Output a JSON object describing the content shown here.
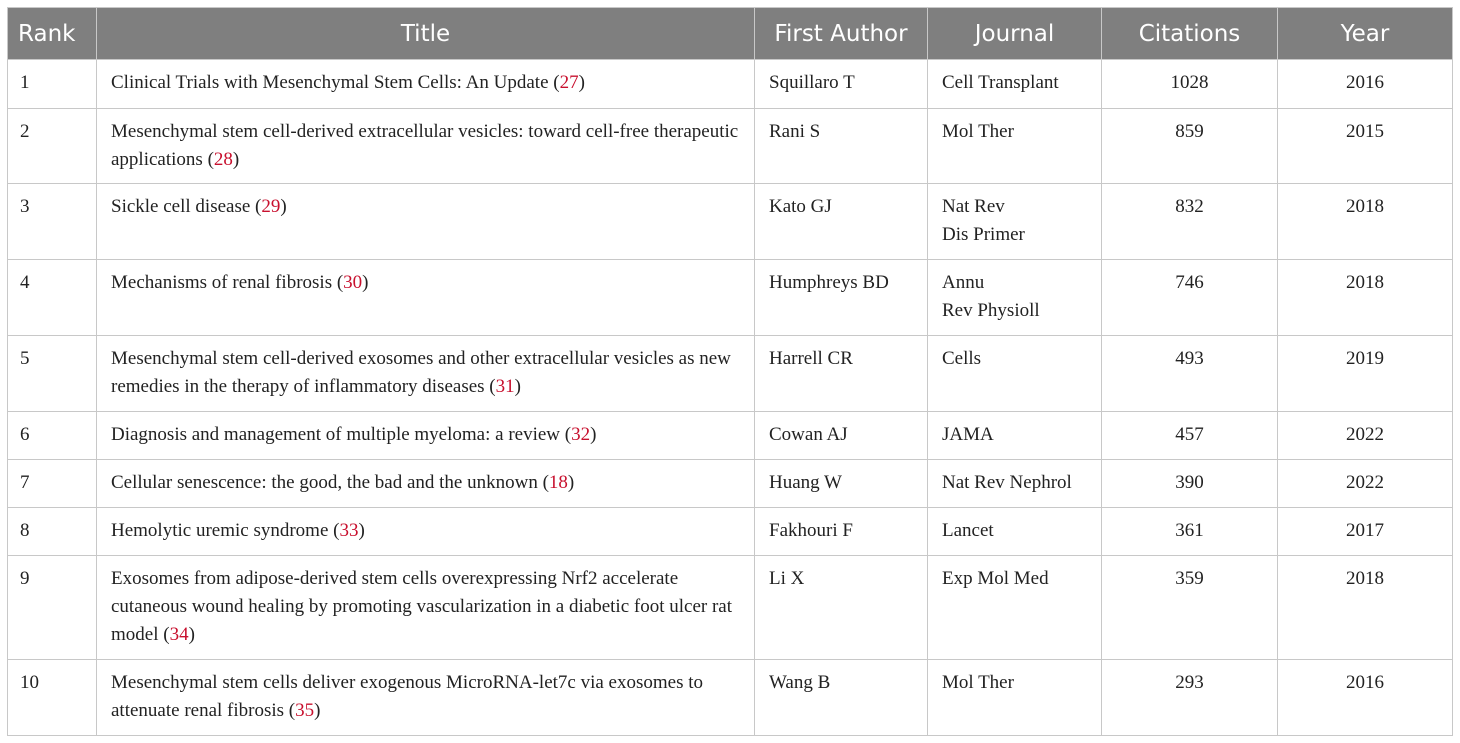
{
  "headers": [
    "Rank",
    "Title",
    "First Author",
    "Journal",
    "Citations",
    "Year"
  ],
  "colors": {
    "header_bg": "#7f7f7f",
    "reference": "#c8102e",
    "border": "#c8c8c8"
  },
  "rows": [
    {
      "rank": "1",
      "title": "Clinical Trials with Mesenchymal Stem Cells: An Update",
      "ref": "27",
      "author": "Squillaro T",
      "journal": "Cell Transplant",
      "citations": "1028",
      "year": "2016"
    },
    {
      "rank": "2",
      "title": "Mesenchymal stem cell-derived extracellular vesicles: toward cell-free therapeutic applications",
      "ref": "28",
      "author": "Rani S",
      "journal": "Mol Ther",
      "citations": "859",
      "year": "2015"
    },
    {
      "rank": "3",
      "title": "Sickle cell disease",
      "ref": "29",
      "author": "Kato GJ",
      "journal": "Nat Rev\nDis Primer",
      "citations": "832",
      "year": "2018"
    },
    {
      "rank": "4",
      "title": "Mechanisms of renal fibrosis",
      "ref": "30",
      "author": "Humphreys BD",
      "journal": "Annu\nRev Physioll",
      "citations": "746",
      "year": "2018"
    },
    {
      "rank": "5",
      "title": "Mesenchymal stem cell-derived exosomes and other extracellular vesicles as new remedies in the therapy of inflammatory diseases",
      "ref": "31",
      "author": "Harrell CR",
      "journal": "Cells",
      "citations": "493",
      "year": "2019"
    },
    {
      "rank": "6",
      "title": "Diagnosis and management of multiple myeloma: a review",
      "ref": "32",
      "author": "Cowan AJ",
      "journal": "JAMA",
      "citations": "457",
      "year": "2022"
    },
    {
      "rank": "7",
      "title": "Cellular senescence: the good, the bad and the unknown",
      "ref": "18",
      "author": "Huang W",
      "journal": "Nat Rev Nephrol",
      "citations": "390",
      "year": "2022"
    },
    {
      "rank": "8",
      "title": "Hemolytic uremic syndrome",
      "ref": "33",
      "author": "Fakhouri F",
      "journal": "Lancet",
      "citations": "361",
      "year": "2017"
    },
    {
      "rank": "9",
      "title": "Exosomes from adipose-derived stem cells overexpressing Nrf2 accelerate cutaneous wound healing by promoting vascularization in a diabetic foot ulcer rat model",
      "ref": "34",
      "author": "Li X",
      "journal": "Exp Mol Med",
      "citations": "359",
      "year": "2018"
    },
    {
      "rank": "10",
      "title": "Mesenchymal stem cells deliver exogenous MicroRNA-let7c via exosomes to attenuate renal fibrosis",
      "ref": "35",
      "author": "Wang B",
      "journal": "Mol Ther",
      "citations": "293",
      "year": "2016"
    }
  ]
}
